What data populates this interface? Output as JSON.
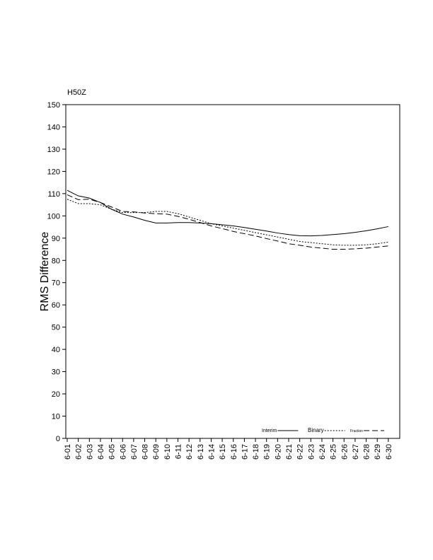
{
  "chart_data": {
    "type": "line",
    "title": "H50Z",
    "y_label": "RMS Difference",
    "categories": [
      "6-01",
      "6-02",
      "6-03",
      "6-04",
      "6-05",
      "6-06",
      "6-07",
      "6-08",
      "6-09",
      "6-10",
      "6-11",
      "6-12",
      "6-13",
      "6-14",
      "6-15",
      "6-16",
      "6-17",
      "6-18",
      "6-19",
      "6-20",
      "6-21",
      "6-22",
      "6-23",
      "6-24",
      "6-25",
      "6-26",
      "6-27",
      "6-28",
      "6-29",
      "6-30"
    ],
    "series": [
      {
        "name": "Interim",
        "color": "#000000",
        "style": "solid",
        "values": [
          111.5,
          109,
          108,
          106,
          103,
          100.8,
          99.5,
          98,
          96.8,
          96.8,
          97,
          97,
          96.8,
          96.5,
          96,
          95.5,
          94.8,
          94,
          93.2,
          92.3,
          91.6,
          91.1,
          91,
          91.2,
          91.6,
          92,
          92.6,
          93.3,
          94.2,
          95.2
        ]
      },
      {
        "name": "Binary",
        "color": "#000000",
        "style": "dotted",
        "values": [
          107.5,
          105.5,
          105.5,
          105,
          103,
          101.5,
          101.5,
          101.5,
          102,
          102,
          101,
          99.5,
          98,
          96.5,
          95.5,
          94.5,
          93.5,
          92.5,
          91.5,
          90.5,
          89.5,
          88.5,
          88,
          87.5,
          87,
          86.8,
          86.8,
          87,
          87.5,
          88.2
        ]
      },
      {
        "name": "Fraction",
        "color": "#000000",
        "style": "dashed",
        "values": [
          109.5,
          107.3,
          107.5,
          106,
          104,
          102,
          101.8,
          101.3,
          101,
          100.8,
          99.8,
          98.5,
          97,
          95.5,
          94.3,
          93,
          92,
          91,
          89.8,
          88.7,
          87.5,
          86.8,
          86,
          85.5,
          85,
          85,
          85.2,
          85.5,
          86,
          86.5
        ]
      }
    ],
    "ylim": [
      0,
      150
    ],
    "yticks": [
      0,
      10,
      20,
      30,
      40,
      50,
      60,
      70,
      80,
      90,
      100,
      110,
      120,
      130,
      140,
      150
    ]
  }
}
